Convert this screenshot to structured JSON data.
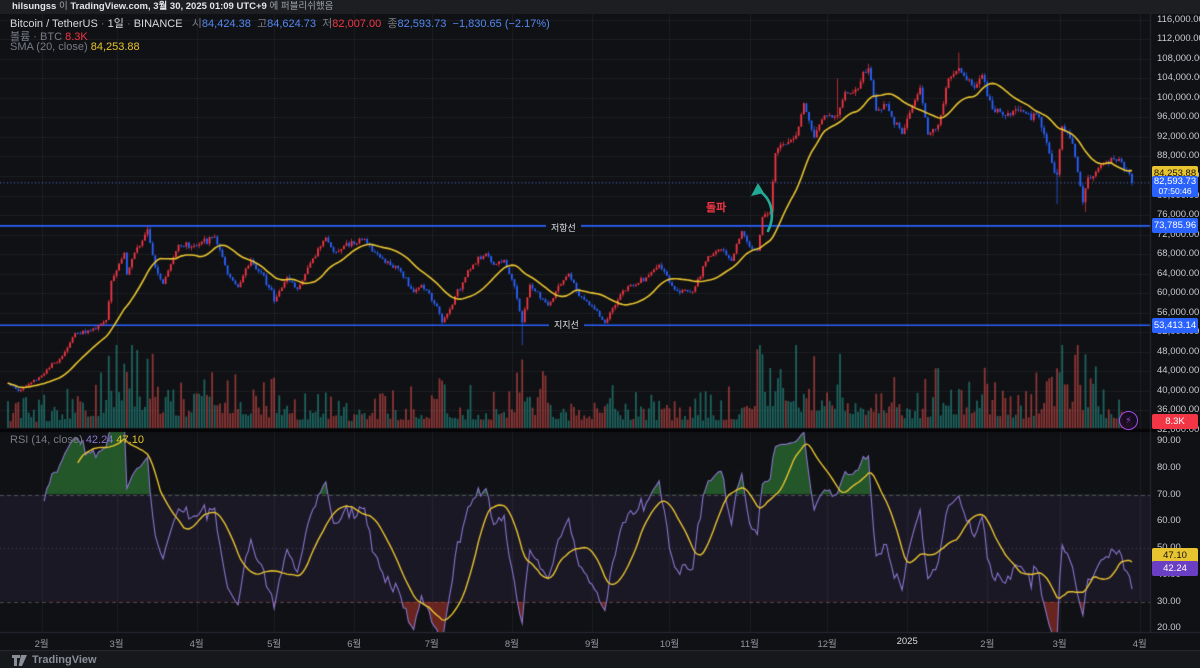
{
  "publish_bar": {
    "user": "hilsungss",
    "mid": "이",
    "site": "TradingView.com,",
    "datetime": "3월 30, 2025 01:09 UTC+9",
    "tail": "에 퍼블리쉬했음"
  },
  "legend": {
    "symbol": "Bitcoin / TetherUS",
    "interval": "1일",
    "exchange": "BINANCE",
    "open_label": "시",
    "open": "84,424.38",
    "high_label": "고",
    "high": "84,624.73",
    "low_label": "저",
    "low": "82,007.00",
    "close_label": "종",
    "close": "82,593.73",
    "change": "−1,830.65 (−2.17%)",
    "volume_label": "볼륨 · BTC",
    "volume_value": "8.3K",
    "sma_label": "SMA (20, close)",
    "sma_value": "84,253.88"
  },
  "rsi_legend": {
    "label": "RSI (14, close)",
    "value": "42.24",
    "ma_value": "47.10"
  },
  "annotations": {
    "resistance": "저항선",
    "support": "지지선",
    "breakout": "돌파",
    "lightning": "⚡"
  },
  "badges": {
    "sma": "84,253.88",
    "last_price": "82,593.73",
    "countdown": "07:50:46",
    "resistance": "73,785.96",
    "support": "53,413.14",
    "volume": "8.3K",
    "rsi": "42.24",
    "rsi_ma": "47.10"
  },
  "footer": {
    "brand": "TradingView"
  },
  "time_axis": {
    "labels": [
      "2월",
      "3월",
      "4월",
      "5월",
      "6월",
      "7월",
      "8월",
      "9월",
      "10월",
      "11월",
      "12월",
      "2025",
      "2월",
      "3월",
      "4월"
    ],
    "year_index": 11
  },
  "price_axis_ticks": [
    116000,
    112000,
    108000,
    104000,
    100000,
    96000,
    92000,
    88000,
    84000,
    80000,
    76000,
    72000,
    68000,
    64000,
    60000,
    56000,
    52000,
    48000,
    44000,
    40000,
    36000,
    32000
  ],
  "rsi_axis_ticks": [
    90,
    80,
    70,
    60,
    50,
    40,
    30,
    20
  ],
  "colors": {
    "up": "#f23645",
    "down": "#2962ff",
    "vol_up": "#26a69a",
    "vol_down": "#ef5350",
    "sma": "#e8c430",
    "rsi": "#8a76cf",
    "rsi_ma": "#e8c430",
    "level_line": "#2962ff",
    "badge_yellow": "#e8c430",
    "badge_purple": "#6b3fc4",
    "badge_blue": "#2962ff",
    "badge_red": "#f23645",
    "breakout_arrow": "#22ab94",
    "breakout_text": "#f23645",
    "overbought_fill": "#2e7d32",
    "oversold_fill": "#c0392b"
  },
  "chart_data": {
    "type": "candlestick",
    "panes": [
      "price+volume+sma20",
      "rsi14"
    ],
    "x_start": "2024-01-19",
    "x_end": "2025-03-29",
    "price_axis_range": [
      31900,
      117200
    ],
    "rsi_axis_range": [
      15,
      93
    ],
    "sma_period": 20,
    "rsi_period": 14,
    "rsi_ma_period": 14,
    "levels": {
      "resistance": 73785.96,
      "support": 53413.14,
      "last_price": 82593.73,
      "sma_last": 84253.88,
      "rsi_last": 42.24,
      "rsi_ma_last": 47.1,
      "volume_last_k": 8.3
    },
    "last_candle": {
      "open": 84424.38,
      "high": 84624.73,
      "low": 82007.0,
      "close": 82593.73
    },
    "price_keypoints": [
      [
        "2024-01-19",
        41600
      ],
      [
        "2024-01-23",
        39900
      ],
      [
        "2024-02-01",
        43100
      ],
      [
        "2024-02-09",
        47100
      ],
      [
        "2024-02-14",
        51800
      ],
      [
        "2024-02-20",
        52300
      ],
      [
        "2024-02-26",
        54500
      ],
      [
        "2024-02-28",
        62500
      ],
      [
        "2024-03-04",
        68300
      ],
      [
        "2024-03-05",
        63800
      ],
      [
        "2024-03-08",
        68300
      ],
      [
        "2024-03-13",
        73100
      ],
      [
        "2024-03-16",
        65300
      ],
      [
        "2024-03-19",
        61900
      ],
      [
        "2024-03-25",
        69900
      ],
      [
        "2024-04-01",
        69700
      ],
      [
        "2024-04-08",
        71600
      ],
      [
        "2024-04-13",
        63900
      ],
      [
        "2024-04-17",
        61200
      ],
      [
        "2024-04-22",
        66800
      ],
      [
        "2024-04-30",
        60600
      ],
      [
        "2024-05-01",
        58300
      ],
      [
        "2024-05-06",
        63200
      ],
      [
        "2024-05-10",
        60800
      ],
      [
        "2024-05-15",
        66200
      ],
      [
        "2024-05-21",
        71400
      ],
      [
        "2024-05-24",
        68500
      ],
      [
        "2024-06-05",
        71100
      ],
      [
        "2024-06-11",
        67300
      ],
      [
        "2024-06-18",
        65100
      ],
      [
        "2024-06-24",
        60200
      ],
      [
        "2024-06-27",
        61700
      ],
      [
        "2024-07-03",
        57300
      ],
      [
        "2024-07-05",
        54000
      ],
      [
        "2024-07-08",
        56700
      ],
      [
        "2024-07-15",
        64700
      ],
      [
        "2024-07-22",
        68100
      ],
      [
        "2024-07-25",
        65800
      ],
      [
        "2024-07-29",
        66800
      ],
      [
        "2024-08-02",
        61400
      ],
      [
        "2024-08-05",
        54000
      ],
      [
        "2024-08-08",
        61700
      ],
      [
        "2024-08-15",
        57500
      ],
      [
        "2024-08-23",
        64000
      ],
      [
        "2024-08-27",
        59400
      ],
      [
        "2024-09-01",
        57300
      ],
      [
        "2024-09-06",
        53900
      ],
      [
        "2024-09-13",
        60500
      ],
      [
        "2024-09-18",
        61700
      ],
      [
        "2024-09-24",
        64300
      ],
      [
        "2024-09-27",
        65800
      ],
      [
        "2024-10-03",
        60700
      ],
      [
        "2024-10-10",
        60300
      ],
      [
        "2024-10-16",
        67600
      ],
      [
        "2024-10-21",
        69000
      ],
      [
        "2024-10-25",
        66600
      ],
      [
        "2024-10-29",
        72700
      ],
      [
        "2024-11-01",
        69500
      ],
      [
        "2024-11-04",
        68700
      ],
      [
        "2024-11-06",
        75600
      ],
      [
        "2024-11-09",
        76700
      ],
      [
        "2024-11-11",
        88700
      ],
      [
        "2024-11-13",
        90400
      ],
      [
        "2024-11-16",
        91000
      ],
      [
        "2024-11-19",
        92300
      ],
      [
        "2024-11-22",
        98900
      ],
      [
        "2024-11-26",
        91900
      ],
      [
        "2024-11-30",
        96400
      ],
      [
        "2024-12-05",
        96500
      ],
      [
        "2024-12-08",
        101200
      ],
      [
        "2024-12-11",
        101100
      ],
      [
        "2024-12-17",
        106100
      ],
      [
        "2024-12-20",
        97400
      ],
      [
        "2024-12-24",
        98700
      ],
      [
        "2024-12-30",
        92600
      ],
      [
        "2025-01-02",
        97000
      ],
      [
        "2025-01-06",
        102100
      ],
      [
        "2025-01-09",
        92500
      ],
      [
        "2025-01-13",
        94500
      ],
      [
        "2025-01-17",
        104000
      ],
      [
        "2025-01-21",
        106100
      ],
      [
        "2025-01-27",
        102100
      ],
      [
        "2025-01-30",
        104700
      ],
      [
        "2025-02-03",
        97700
      ],
      [
        "2025-02-07",
        96500
      ],
      [
        "2025-02-14",
        97500
      ],
      [
        "2025-02-21",
        96100
      ],
      [
        "2025-02-25",
        88600
      ],
      [
        "2025-02-27",
        84700
      ],
      [
        "2025-02-28",
        84300
      ],
      [
        "2025-03-02",
        94200
      ],
      [
        "2025-03-06",
        90600
      ],
      [
        "2025-03-10",
        78600
      ],
      [
        "2025-03-12",
        83700
      ],
      [
        "2025-03-14",
        84000
      ],
      [
        "2025-03-19",
        86800
      ],
      [
        "2025-03-24",
        87500
      ],
      [
        "2025-03-28",
        84400
      ],
      [
        "2025-03-29",
        82593.73
      ]
    ],
    "wick_overrides": [
      [
        "2024-03-13",
        "h",
        73780
      ],
      [
        "2024-08-05",
        "l",
        49300
      ],
      [
        "2024-12-05",
        "h",
        104000
      ],
      [
        "2025-01-21",
        "h",
        109300
      ],
      [
        "2025-02-28",
        "l",
        78200
      ],
      [
        "2025-03-11",
        "l",
        76600
      ]
    ],
    "volume_keypoints_k": [
      [
        "2024-01-19",
        25
      ],
      [
        "2024-02-01",
        22
      ],
      [
        "2024-02-26",
        45
      ],
      [
        "2024-02-28",
        60
      ],
      [
        "2024-03-05",
        90
      ],
      [
        "2024-03-13",
        55
      ],
      [
        "2024-03-20",
        50
      ],
      [
        "2024-04-01",
        35
      ],
      [
        "2024-04-13",
        50
      ],
      [
        "2024-05-01",
        35
      ],
      [
        "2024-05-15",
        28
      ],
      [
        "2024-06-01",
        22
      ],
      [
        "2024-06-24",
        30
      ],
      [
        "2024-07-05",
        38
      ],
      [
        "2024-07-15",
        30
      ],
      [
        "2024-08-01",
        30
      ],
      [
        "2024-08-05",
        110
      ],
      [
        "2024-08-08",
        50
      ],
      [
        "2024-08-20",
        25
      ],
      [
        "2024-09-06",
        35
      ],
      [
        "2024-09-18",
        28
      ],
      [
        "2024-10-01",
        24
      ],
      [
        "2024-10-15",
        26
      ],
      [
        "2024-10-29",
        32
      ],
      [
        "2024-11-06",
        75
      ],
      [
        "2024-11-12",
        80
      ],
      [
        "2024-11-22",
        55
      ],
      [
        "2024-12-05",
        70
      ],
      [
        "2024-12-12",
        40
      ],
      [
        "2024-12-20",
        55
      ],
      [
        "2025-01-02",
        30
      ],
      [
        "2025-01-13",
        45
      ],
      [
        "2025-01-21",
        48
      ],
      [
        "2025-02-03",
        45
      ],
      [
        "2025-02-14",
        30
      ],
      [
        "2025-02-25",
        60
      ],
      [
        "2025-02-28",
        65
      ],
      [
        "2025-03-03",
        70
      ],
      [
        "2025-03-11",
        60
      ],
      [
        "2025-03-20",
        30
      ],
      [
        "2025-03-28",
        12
      ],
      [
        "2025-03-29",
        8.3
      ]
    ]
  }
}
